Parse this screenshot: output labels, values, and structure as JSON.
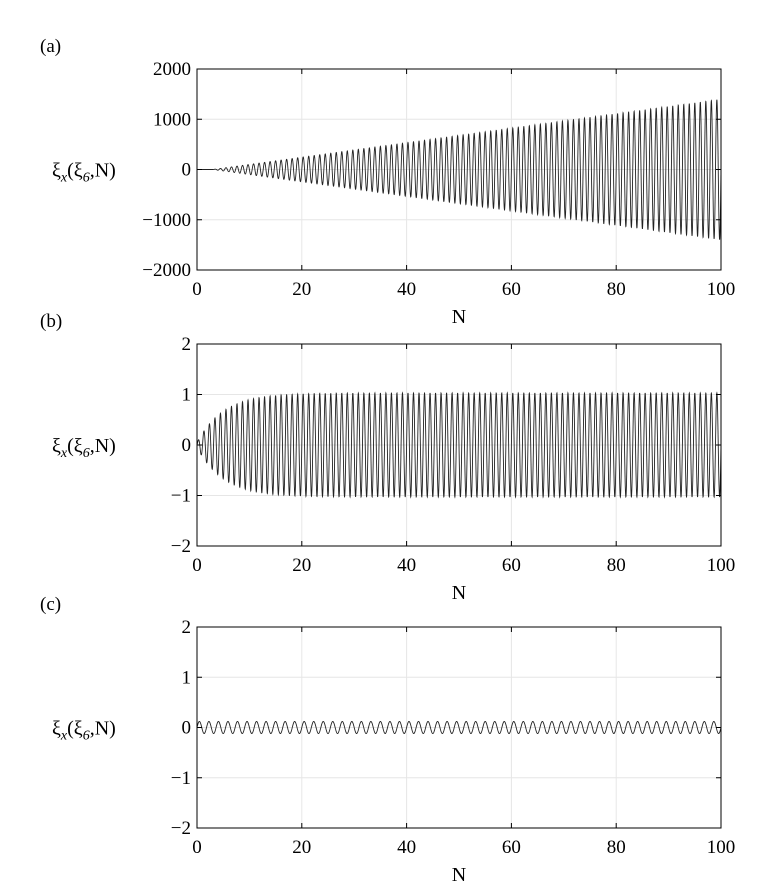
{
  "chart_data": [
    {
      "type": "line",
      "panel_label": "(a)",
      "xlabel": "N",
      "ylabel": {
        "xi": "ξ",
        "sub_x": "x",
        "open": "(ξ",
        "sub_6": "6",
        "rest": ",N)"
      },
      "xlim": [
        0,
        100
      ],
      "ylim": [
        -2000,
        2000
      ],
      "xticks": [
        0,
        20,
        40,
        60,
        80,
        100
      ],
      "yticks": [
        -2000,
        -1000,
        0,
        1000,
        2000
      ],
      "ytick_labels": [
        "−2000",
        "−1000",
        "0",
        "1000",
        "2000"
      ],
      "grid": true,
      "series": [
        {
          "behavior": "growing oscillation",
          "cycles": 95,
          "envelope": {
            "start": 0,
            "end": 1400,
            "growth": "linear",
            "onset_N": 3
          }
        }
      ]
    },
    {
      "type": "line",
      "panel_label": "(b)",
      "xlabel": "N",
      "ylabel": {
        "xi": "ξ",
        "sub_x": "x",
        "open": "(ξ",
        "sub_6": "6",
        "rest": ",N)"
      },
      "xlim": [
        0,
        100
      ],
      "ylim": [
        -2,
        2
      ],
      "xticks": [
        0,
        20,
        40,
        60,
        80,
        100
      ],
      "yticks": [
        -2,
        -1,
        0,
        1,
        2
      ],
      "ytick_labels": [
        "−2",
        "−1",
        "0",
        "1",
        "2"
      ],
      "grid": true,
      "series": [
        {
          "behavior": "saturating oscillation",
          "cycles": 95,
          "envelope": {
            "start": 0.05,
            "end": 1.03,
            "growth": "saturating",
            "time_constant_N": 5
          }
        }
      ]
    },
    {
      "type": "line",
      "panel_label": "(c)",
      "xlabel": "N",
      "ylabel": {
        "xi": "ξ",
        "sub_x": "x",
        "open": "(ξ",
        "sub_6": "6",
        "rest": ",N)"
      },
      "xlim": [
        0,
        100
      ],
      "ylim": [
        -2,
        2
      ],
      "xticks": [
        0,
        20,
        40,
        60,
        80,
        100
      ],
      "yticks": [
        -2,
        -1,
        0,
        1,
        2
      ],
      "ytick_labels": [
        "−2",
        "−1",
        "0",
        "1",
        "2"
      ],
      "grid": true,
      "series": [
        {
          "behavior": "bounded oscillation",
          "cycles": 55,
          "envelope": {
            "start": 0.12,
            "end": 0.12,
            "growth": "constant"
          }
        }
      ]
    }
  ]
}
